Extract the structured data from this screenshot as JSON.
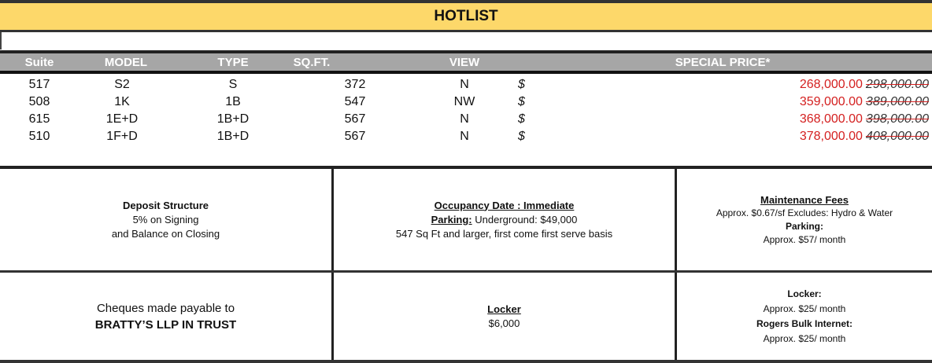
{
  "title": "HOTLIST",
  "columns": [
    "Suite",
    "MODEL",
    "TYPE",
    "SQ.FT.",
    "VIEW",
    "SPECIAL PRICE*"
  ],
  "rows": [
    {
      "suite": "517",
      "model": "S2",
      "type": "S",
      "sqft": "372",
      "view": "N",
      "currency": "$",
      "price": "268,000.00",
      "old_price": "298,000.00"
    },
    {
      "suite": "508",
      "model": "1K",
      "type": "1B",
      "sqft": "547",
      "view": "NW",
      "currency": "$",
      "price": "359,000.00",
      "old_price": "389,000.00"
    },
    {
      "suite": "615",
      "model": "1E+D",
      "type": "1B+D",
      "sqft": "567",
      "view": "N",
      "currency": "$",
      "price": "368,000.00",
      "old_price": "398,000.00"
    },
    {
      "suite": "510",
      "model": "1F+D",
      "type": "1B+D",
      "sqft": "567",
      "view": "N",
      "currency": "$",
      "price": "378,000.00",
      "old_price": "408,000.00"
    }
  ],
  "deposit": {
    "heading": "Deposit Structure",
    "line1": "5% on Signing",
    "line2": "and Balance on Closing"
  },
  "occupancy": {
    "heading": "Occupancy Date : Immediate",
    "parking_label": "Parking:",
    "parking_value": " Underground: $49,000",
    "note": "547 Sq Ft and larger, first come first serve basis"
  },
  "maintenance": {
    "heading": "Maintenance Fees",
    "line1": "Approx. $0.67/sf Excludes: Hydro & Water",
    "parking_label": "Parking:",
    "parking_value": "Approx. $57/ month"
  },
  "cheques": {
    "line1": "Cheques made payable to",
    "line2": "BRATTY’S LLP IN TRUST"
  },
  "locker": {
    "heading": "Locker",
    "value": "$6,000"
  },
  "fees2": {
    "locker_label": "Locker:",
    "locker_value": "Approx. $25/ month",
    "internet_label": "Rogers Bulk Internet:",
    "internet_value": "Approx. $25/ month"
  },
  "colors": {
    "title_bg": "#fdd86a",
    "header_bg": "#a6a6a6",
    "price_new": "#d42020"
  }
}
